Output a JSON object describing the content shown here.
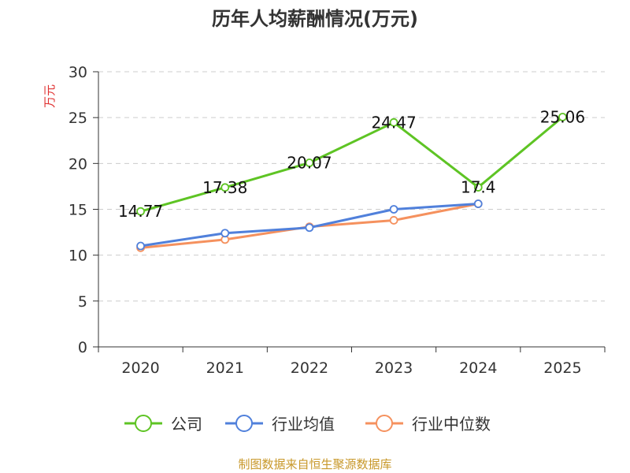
{
  "chart_data": {
    "type": "line",
    "title": "历年人均薪酬情况(万元)",
    "ylabel": "万元",
    "xlabel": "",
    "categories": [
      "2020",
      "2021",
      "2022",
      "2023",
      "2024",
      "2025"
    ],
    "ylim": [
      0,
      30
    ],
    "yticks": [
      "0",
      "5",
      "10",
      "15",
      "20",
      "25",
      "30"
    ],
    "grid": true,
    "legend_position": "bottom",
    "series": [
      {
        "name": "公司",
        "color": "#5ec424",
        "values": [
          14.77,
          17.38,
          20.07,
          24.47,
          17.4,
          25.06
        ],
        "labels": [
          "14.77",
          "17.38",
          "20.07",
          "24.47",
          "17.4",
          "25.06"
        ]
      },
      {
        "name": "行业均值",
        "color": "#5080db",
        "values": [
          11.0,
          12.4,
          13.0,
          15.0,
          15.6,
          null
        ],
        "labels": []
      },
      {
        "name": "行业中位数",
        "color": "#f5915e",
        "values": [
          10.8,
          11.7,
          13.1,
          13.8,
          15.6,
          null
        ],
        "labels": []
      }
    ]
  },
  "source_text": "制图数据来自恒生聚源数据库",
  "colors": {
    "ylabel": "#e03030",
    "source": "#c8982a",
    "axis": "#333333",
    "grid": "#cccccc"
  }
}
